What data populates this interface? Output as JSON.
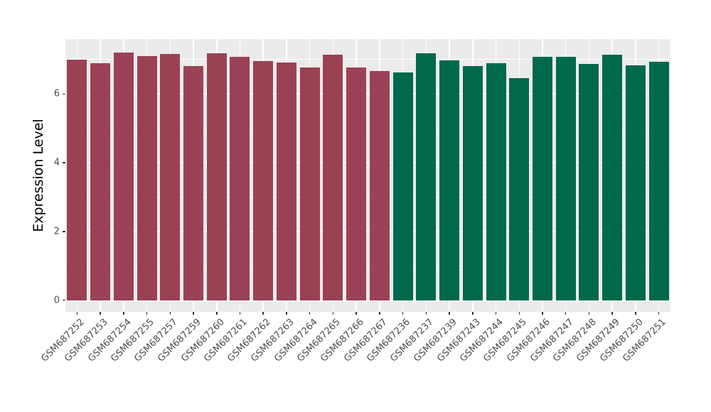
{
  "chart_data": {
    "type": "bar",
    "title": "",
    "xlabel": "",
    "ylabel": "Expression Level",
    "ylim": [
      0,
      7.56
    ],
    "yticks": [
      0,
      2,
      4,
      6
    ],
    "yticks_minor": [
      1,
      3,
      5,
      7
    ],
    "grid": true,
    "legend_position": "none",
    "categories": [
      "GSM687252",
      "GSM687253",
      "GSM687254",
      "GSM687255",
      "GSM687257",
      "GSM687259",
      "GSM687260",
      "GSM687261",
      "GSM687262",
      "GSM687263",
      "GSM687264",
      "GSM687265",
      "GSM687266",
      "GSM687267",
      "GSM687236",
      "GSM687237",
      "GSM687239",
      "GSM687243",
      "GSM687244",
      "GSM687245",
      "GSM687246",
      "GSM687247",
      "GSM687248",
      "GSM687249",
      "GSM687250",
      "GSM687251"
    ],
    "values": [
      7.0,
      6.9,
      7.2,
      7.1,
      7.17,
      6.82,
      7.18,
      7.09,
      6.96,
      6.91,
      6.78,
      7.14,
      6.77,
      6.66,
      6.63,
      7.18,
      6.97,
      6.81,
      6.9,
      6.47,
      7.09,
      7.08,
      6.87,
      7.14,
      6.83,
      6.94
    ],
    "group_index": [
      0,
      0,
      0,
      0,
      0,
      0,
      0,
      0,
      0,
      0,
      0,
      0,
      0,
      0,
      1,
      1,
      1,
      1,
      1,
      1,
      1,
      1,
      1,
      1,
      1,
      1
    ],
    "group_colors": [
      "#9A4254",
      "#00694C"
    ]
  },
  "style": {
    "figure_bg": "#FFFFFF",
    "panel_bg": "#EBEBEB",
    "grid_color": "#FFFFFF",
    "axis_text_color": "#4D4D4D",
    "axis_title_color": "#000000",
    "tick_mark_color": "#333333"
  }
}
